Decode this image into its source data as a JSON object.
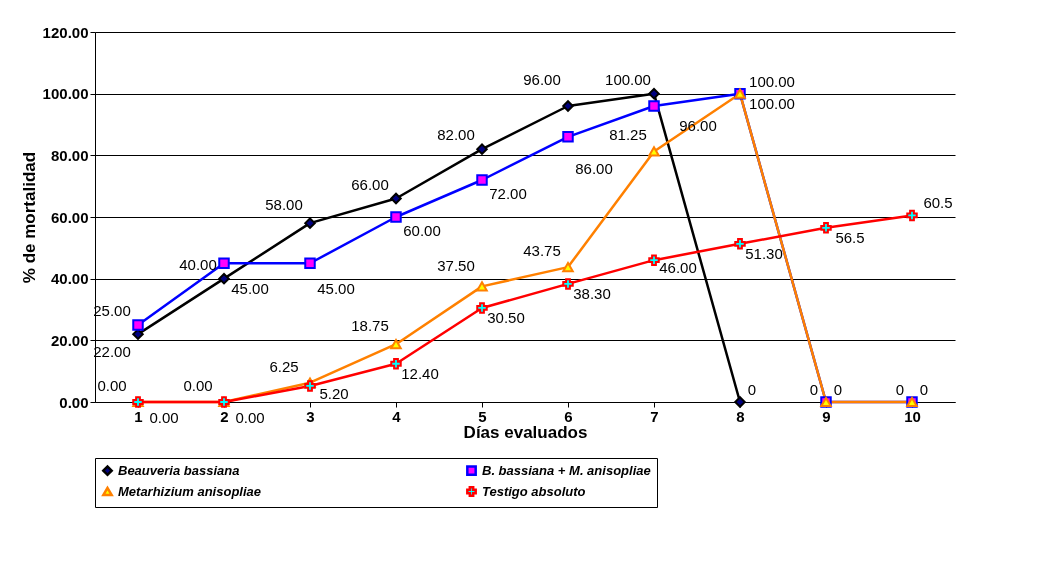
{
  "chart_data": {
    "type": "line",
    "xlabel": "Días evaluados",
    "ylabel": "% de mortalidad",
    "categories": [
      "1",
      "2",
      "3",
      "4",
      "5",
      "6",
      "7",
      "8",
      "9",
      "10"
    ],
    "series": [
      {
        "name": "Beauveria bassiana",
        "color": "#000000",
        "marker": "diamond",
        "values": [
          22,
          40,
          58,
          66,
          82,
          96,
          100,
          0,
          null,
          null
        ],
        "value_labels": [
          "22.00",
          "40.00",
          "58.00",
          "66.00",
          "82.00",
          "96.00",
          "100.00",
          "0",
          null,
          null
        ]
      },
      {
        "name": "B. bassiana + M. anisopliae",
        "color": "#0000ff",
        "marker": "square",
        "values": [
          25,
          45,
          45,
          60,
          72,
          86,
          96,
          100,
          0,
          0
        ],
        "value_labels": [
          "25.00",
          "45.00",
          "45.00",
          "60.00",
          "72.00",
          "86.00",
          "96.00",
          "100.00",
          "0",
          "0"
        ]
      },
      {
        "name": "Metarhizium anisopliae",
        "color": "#ff8000",
        "marker": "triangle",
        "values": [
          0,
          0,
          6.25,
          18.75,
          37.5,
          43.75,
          81.25,
          100,
          0,
          0
        ],
        "value_labels": [
          "0.00",
          "0.00",
          "6.25",
          "18.75",
          "37.50",
          "43.75",
          "81.25",
          "100.00",
          "0",
          "0"
        ]
      },
      {
        "name": "Testigo absoluto",
        "color": "#ff0000",
        "marker": "cross",
        "values": [
          0,
          0,
          5.2,
          12.4,
          30.5,
          38.3,
          46,
          51.3,
          56.5,
          60.5
        ],
        "value_labels": [
          "0.00",
          "0.00",
          "5.20",
          "12.40",
          "30.50",
          "38.30",
          "46.00",
          "51.30",
          "56.5",
          "60.5"
        ]
      }
    ],
    "ylim": [
      0,
      120
    ],
    "yticks": [
      {
        "value": 0,
        "label": "0.00"
      },
      {
        "value": 20,
        "label": "20.00"
      },
      {
        "value": 40,
        "label": "40.00"
      },
      {
        "value": 60,
        "label": "60.00"
      },
      {
        "value": 80,
        "label": "80.00"
      },
      {
        "value": 100,
        "label": "100.00"
      },
      {
        "value": 120,
        "label": "120.00"
      }
    ],
    "grid": "y",
    "legend": "bottom",
    "line_style": "solid"
  }
}
